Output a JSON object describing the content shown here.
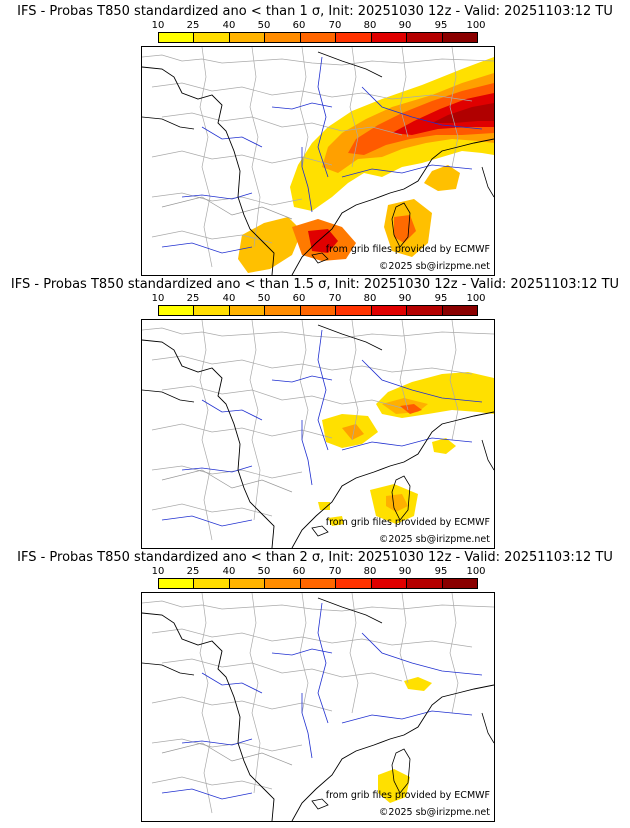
{
  "legend": {
    "ticks": [
      "10",
      "25",
      "40",
      "50",
      "60",
      "70",
      "80",
      "90",
      "95",
      "100"
    ],
    "colors": [
      "#ffff00",
      "#ffdd00",
      "#ffb300",
      "#ff8c00",
      "#ff6600",
      "#ff3300",
      "#e00000",
      "#b40000",
      "#8a0000",
      "#5a0000"
    ]
  },
  "panels": [
    {
      "title": "IFS - Probas T850  standardized ano < than 1 σ, Init: 20251030 12z - Valid: 20251103:12 TU",
      "credit_source": "from grib files provided by ECMWF",
      "credit_copyright": "©2025 sb@irizpme.net"
    },
    {
      "title": "IFS - Probas T850  standardized ano < than 1.5 σ, Init: 20251030 12z - Valid: 20251103:12 TU",
      "credit_source": "from grib files provided by ECMWF",
      "credit_copyright": "©2025 sb@irizpme.net"
    },
    {
      "title": "IFS - Probas T850  standardized ano < than 2 σ, Init: 20251030 12z - Valid: 20251103:12 TU",
      "credit_source": "from grib files provided by ECMWF",
      "credit_copyright": "©2025 sb@irizpme.net"
    }
  ]
}
